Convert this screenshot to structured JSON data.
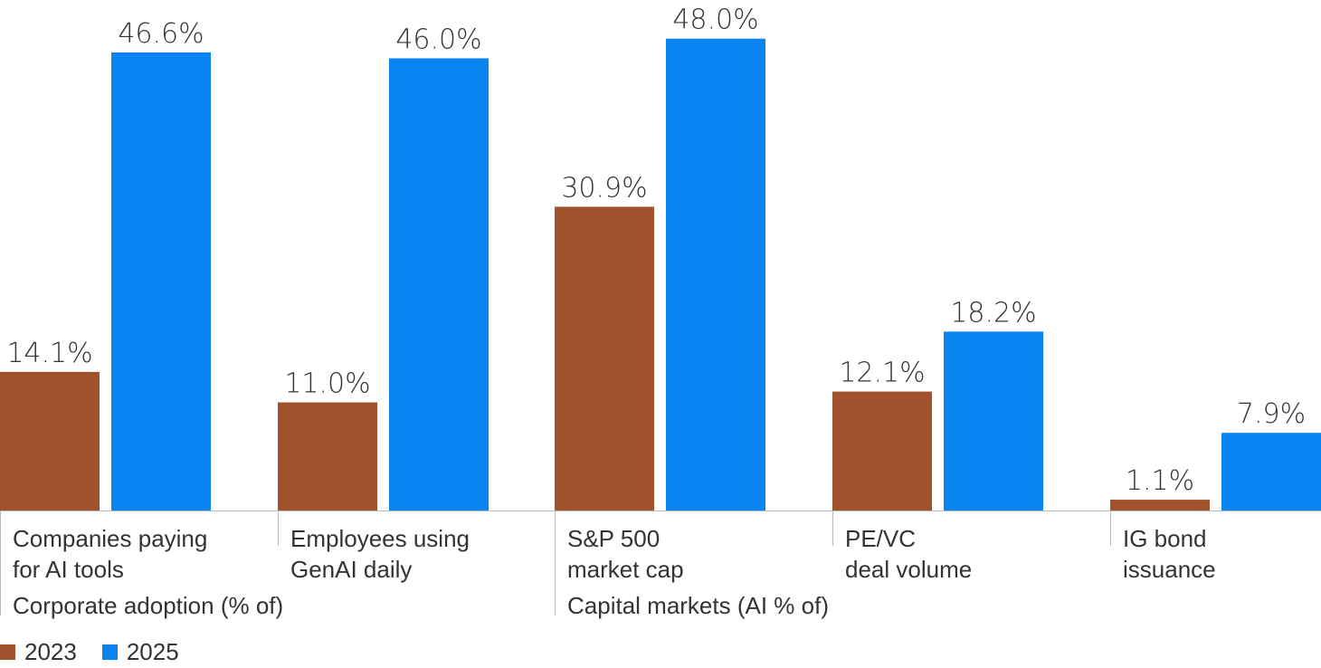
{
  "chart_data": {
    "type": "bar",
    "categories": [
      [
        "Companies paying",
        "for AI tools"
      ],
      [
        "Employees using",
        "GenAI daily"
      ],
      [
        "S&P 500",
        "market cap"
      ],
      [
        "PE/VC",
        "deal volume"
      ],
      [
        "IG bond",
        "issuance"
      ]
    ],
    "groups": [
      {
        "label": "Corporate adoption (% of)",
        "categories": [
          0,
          1
        ]
      },
      {
        "label": "Capital markets (AI % of)",
        "categories": [
          2,
          3,
          4
        ]
      }
    ],
    "series": [
      {
        "name": "2023",
        "color": "#A0522D",
        "values": [
          14.1,
          11.0,
          30.9,
          12.1,
          1.1
        ],
        "labels": [
          "14.1%",
          "11.0%",
          "30.9%",
          "12.1%",
          "1.1%"
        ]
      },
      {
        "name": "2025",
        "color": "#0A84F0",
        "values": [
          46.6,
          46.0,
          48.0,
          18.2,
          7.9
        ],
        "labels": [
          "46.6%",
          "46.0%",
          "48.0%",
          "18.2%",
          "7.9%"
        ]
      }
    ],
    "ylim": [
      0,
      50
    ],
    "grid": false,
    "legend_position": "bottom-left"
  }
}
